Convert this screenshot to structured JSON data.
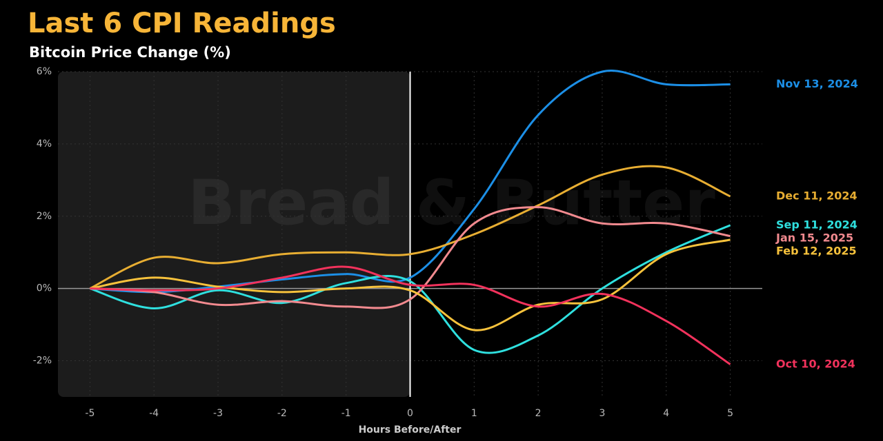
{
  "chart_data": {
    "type": "line",
    "title": "Last 6 CPI Readings",
    "subtitle": "Bitcoin Price Change (%)",
    "x_label": "Hours Before/After",
    "watermark": "Bread & Butter",
    "x": [
      -5,
      -4,
      -3,
      -2,
      -1,
      0,
      1,
      2,
      3,
      4,
      5
    ],
    "xlim": [
      -5.5,
      5.5
    ],
    "xticks": [
      -5,
      -4,
      -3,
      -2,
      -1,
      0,
      1,
      2,
      3,
      4,
      5
    ],
    "ylim": [
      -3,
      6
    ],
    "yticks": [
      {
        "value": -2,
        "label": "-2%"
      },
      {
        "value": 0,
        "label": "0%"
      },
      {
        "value": 2,
        "label": "2%"
      },
      {
        "value": 4,
        "label": "4%"
      },
      {
        "value": 6,
        "label": "6%"
      }
    ],
    "grid": true,
    "series": [
      {
        "name": "Nov 13, 2024",
        "color": "#1c8fe6",
        "values": [
          0,
          -0.1,
          0.05,
          0.25,
          0.4,
          0.3,
          2.2,
          4.8,
          6.0,
          5.65,
          5.65
        ]
      },
      {
        "name": "Dec 11, 2024",
        "color": "#e8ae32",
        "values": [
          0,
          0.85,
          0.7,
          0.95,
          1.0,
          0.95,
          1.5,
          2.3,
          3.15,
          3.35,
          2.55
        ]
      },
      {
        "name": "Sep 11, 2024",
        "color": "#2fe0df",
        "values": [
          0,
          -0.55,
          -0.05,
          -0.4,
          0.15,
          0.2,
          -1.7,
          -1.3,
          0,
          1.0,
          1.75
        ]
      },
      {
        "name": "Jan 15, 2025",
        "color": "#f28a8f",
        "values": [
          0,
          -0.1,
          -0.45,
          -0.35,
          -0.5,
          -0.3,
          1.8,
          2.25,
          1.8,
          1.8,
          1.45
        ]
      },
      {
        "name": "Feb 12, 2025",
        "color": "#f7c23c",
        "values": [
          0,
          0.3,
          0.05,
          -0.1,
          0,
          -0.05,
          -1.15,
          -0.45,
          -0.3,
          0.95,
          1.35
        ]
      },
      {
        "name": "Oct 10, 2024",
        "color": "#f2325c",
        "values": [
          0,
          -0.05,
          0,
          0.3,
          0.6,
          0.1,
          0.1,
          -0.5,
          -0.15,
          -0.9,
          -2.1
        ]
      }
    ]
  }
}
